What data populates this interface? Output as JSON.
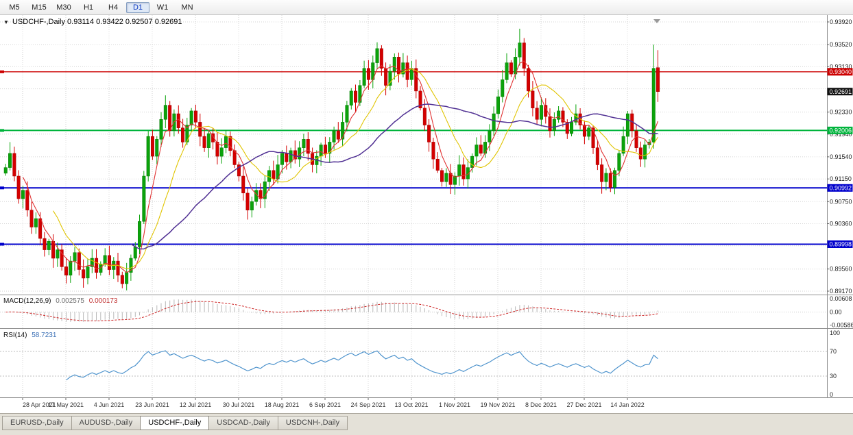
{
  "toolbar": {
    "timeframes": [
      "M5",
      "M15",
      "M30",
      "H1",
      "H4",
      "D1",
      "W1",
      "MN"
    ],
    "active": "D1"
  },
  "header": {
    "symbol": "USDCHF-,Daily",
    "open": "0.93114",
    "high": "0.93422",
    "low": "0.92507",
    "close": "0.92691"
  },
  "misc": {
    "collapse_marker": "▼",
    "shift_marker": "▼"
  },
  "price_axis": {
    "labels": [
      "0.93920",
      "0.93520",
      "0.93130",
      "0.92330",
      "0.91940",
      "0.91540",
      "0.91150",
      "0.90750",
      "0.90360",
      "0.89560",
      "0.89170"
    ],
    "grid": [
      0.9392,
      0.9352,
      0.9313,
      0.9274,
      0.9233,
      0.9194,
      0.9154,
      0.9115,
      0.9075,
      0.9036,
      0.8997,
      0.8956,
      0.8917
    ]
  },
  "levels": [
    {
      "name": "resistance-red",
      "price": 0.9304,
      "label": "0.93040",
      "color": "#cc0000",
      "line_width": 1.4,
      "has_line": true
    },
    {
      "name": "support-green",
      "price": 0.92006,
      "label": "0.92006",
      "color": "#00b43c",
      "line_width": 2,
      "has_line": true
    },
    {
      "name": "support-blue-1",
      "price": 0.90992,
      "label": "0.90992",
      "color": "#0000cc",
      "line_width": 2,
      "has_line": true
    },
    {
      "name": "support-blue-2",
      "price": 0.89998,
      "label": "0.89998",
      "color": "#0000cc",
      "line_width": 2,
      "has_line": true
    },
    {
      "name": "current-price",
      "price": 0.92691,
      "label": "0.92691",
      "color": "#111111",
      "line_width": 0,
      "has_line": false
    }
  ],
  "chart_data": {
    "type": "candlestick",
    "symbol": "USDCHF",
    "timeframe": "Daily",
    "y_range": [
      0.8917,
      0.9392
    ],
    "first_open": 0.9125,
    "closes": [
      0.9135,
      0.916,
      0.912,
      0.908,
      0.9095,
      0.906,
      0.903,
      0.9045,
      0.901,
      0.899,
      0.9005,
      0.8975,
      0.899,
      0.896,
      0.8945,
      0.897,
      0.8985,
      0.8955,
      0.894,
      0.896,
      0.8975,
      0.895,
      0.8965,
      0.898,
      0.8955,
      0.897,
      0.8945,
      0.893,
      0.895,
      0.8975,
      0.8995,
      0.904,
      0.912,
      0.919,
      0.9155,
      0.9185,
      0.922,
      0.9245,
      0.92,
      0.923,
      0.9205,
      0.918,
      0.921,
      0.9235,
      0.9215,
      0.919,
      0.917,
      0.9195,
      0.918,
      0.9155,
      0.917,
      0.919,
      0.9165,
      0.914,
      0.912,
      0.909,
      0.906,
      0.9075,
      0.9095,
      0.908,
      0.911,
      0.913,
      0.9115,
      0.914,
      0.916,
      0.9145,
      0.9165,
      0.915,
      0.917,
      0.9185,
      0.916,
      0.914,
      0.9155,
      0.9175,
      0.916,
      0.918,
      0.92,
      0.9185,
      0.9215,
      0.9245,
      0.927,
      0.925,
      0.928,
      0.931,
      0.929,
      0.932,
      0.9345,
      0.931,
      0.928,
      0.9305,
      0.933,
      0.93,
      0.932,
      0.929,
      0.931,
      0.927,
      0.924,
      0.921,
      0.918,
      0.915,
      0.913,
      0.911,
      0.9125,
      0.9105,
      0.912,
      0.914,
      0.9115,
      0.9135,
      0.9155,
      0.9175,
      0.916,
      0.918,
      0.92,
      0.923,
      0.926,
      0.929,
      0.932,
      0.93,
      0.933,
      0.9355,
      0.931,
      0.927,
      0.924,
      0.922,
      0.9245,
      0.9225,
      0.92,
      0.922,
      0.9235,
      0.9215,
      0.9195,
      0.9215,
      0.923,
      0.921,
      0.919,
      0.9205,
      0.917,
      0.914,
      0.911,
      0.9125,
      0.91,
      0.913,
      0.916,
      0.919,
      0.923,
      0.92,
      0.917,
      0.915,
      0.9175,
      0.918,
      0.931,
      0.92691
    ],
    "candle_overrides": {
      "1": {
        "h": 0.918
      },
      "27": {
        "l": 0.8922
      },
      "86": {
        "h": 0.9356
      },
      "119": {
        "h": 0.938
      },
      "138": {
        "l": 0.9089
      },
      "150": {
        "h": 0.9352
      },
      "151": {
        "o": 0.93114,
        "h": 0.93422,
        "l": 0.92507,
        "c": 0.92691
      }
    },
    "moving_averages": [
      {
        "period": 5,
        "color": "#e03131"
      },
      {
        "period": 12,
        "color": "#e0c400"
      },
      {
        "period": 30,
        "color": "#503093"
      }
    ],
    "x_labels": [
      "28 Apr 2021",
      "17 May 2021",
      "4 Jun 2021",
      "23 Jun 2021",
      "12 Jul 2021",
      "30 Jul 2021",
      "18 Aug 2021",
      "6 Sep 2021",
      "24 Sep 2021",
      "13 Oct 2021",
      "1 Nov 2021",
      "19 Nov 2021",
      "8 Dec 2021",
      "27 Dec 2021",
      "14 Jan 2022"
    ],
    "up_color": "#0ba30b",
    "down_color": "#d40000"
  },
  "macd": {
    "name": "MACD(12,26,9)",
    "value_main": "0.002575",
    "value_signal": "0.000173",
    "fast": 12,
    "slow": 26,
    "signal": 9,
    "axis": [
      "0.00608",
      "0.00",
      "-0.00586"
    ],
    "axis_values": [
      0.00608,
      0,
      -0.00586
    ],
    "hist_color": "#b8b8b8",
    "signal_color": "#cc2222"
  },
  "rsi": {
    "name": "RSI(14)",
    "value": "58.7231",
    "period": 14,
    "axis": [
      "100",
      "70",
      "30",
      "0"
    ],
    "axis_values": [
      100,
      70,
      30,
      0
    ],
    "levels": [
      70,
      30
    ],
    "color": "#4f94cd"
  },
  "tabs": {
    "items": [
      "EURUSD-,Daily",
      "AUDUSD-,Daily",
      "USDCHF-,Daily",
      "USDCAD-,Daily",
      "USDCNH-,Daily"
    ],
    "active": "USDCHF-,Daily"
  }
}
